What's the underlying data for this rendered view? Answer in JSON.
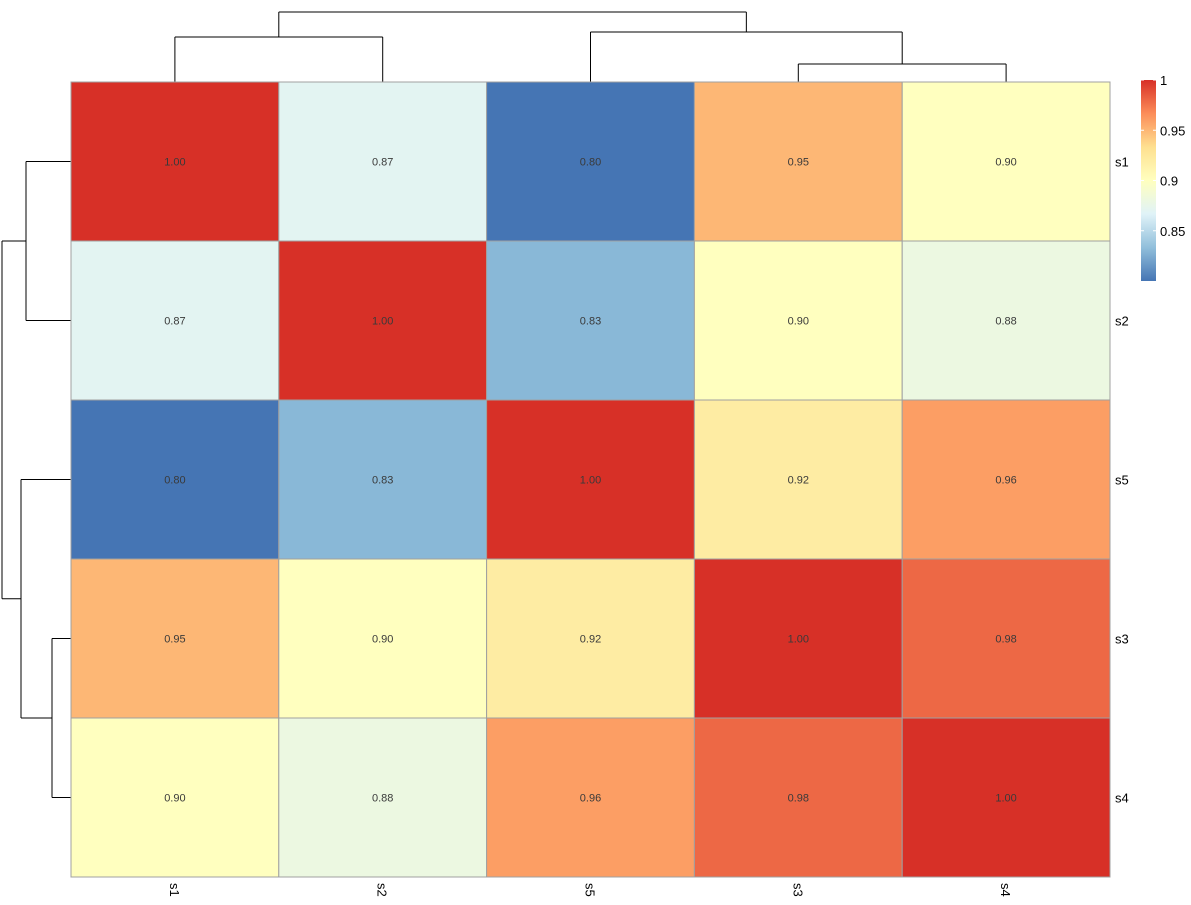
{
  "chart_data": {
    "type": "heatmap",
    "title": "",
    "rows": [
      "s1",
      "s2",
      "s5",
      "s3",
      "s4"
    ],
    "cols": [
      "s1",
      "s2",
      "s5",
      "s3",
      "s4"
    ],
    "values": [
      [
        1.0,
        0.87,
        0.8,
        0.95,
        0.9
      ],
      [
        0.87,
        1.0,
        0.83,
        0.9,
        0.88
      ],
      [
        0.8,
        0.83,
        1.0,
        0.92,
        0.96
      ],
      [
        0.95,
        0.9,
        0.92,
        1.0,
        0.98
      ],
      [
        0.9,
        0.88,
        0.96,
        0.98,
        1.0
      ]
    ],
    "value_labels": [
      [
        "1.00",
        "0.87",
        "0.80",
        "0.95",
        "0.90"
      ],
      [
        "0.87",
        "1.00",
        "0.83",
        "0.90",
        "0.88"
      ],
      [
        "0.80",
        "0.83",
        "1.00",
        "0.92",
        "0.96"
      ],
      [
        "0.95",
        "0.90",
        "0.92",
        "1.00",
        "0.98"
      ],
      [
        "0.90",
        "0.88",
        "0.96",
        "0.98",
        "1.00"
      ]
    ],
    "color_scale": {
      "min": 0.8,
      "max": 1.0,
      "colors": [
        "#4575b4",
        "#91bfdb",
        "#e0f3f8",
        "#ffffbf",
        "#fee090",
        "#fc8d59",
        "#d73027"
      ]
    },
    "legend": {
      "placement": "top-right",
      "ticks": [
        1,
        0.95,
        0.9,
        0.85
      ],
      "tick_labels": [
        "1",
        "0.95",
        "0.9",
        "0.85"
      ]
    },
    "dendrogram": {
      "merge_order": [
        [
          "s3",
          "s4"
        ],
        [
          "s1",
          "s2"
        ],
        [
          "s5",
          "s3+s4"
        ],
        [
          "s1+s2",
          "s5+s3+s4"
        ]
      ]
    }
  }
}
